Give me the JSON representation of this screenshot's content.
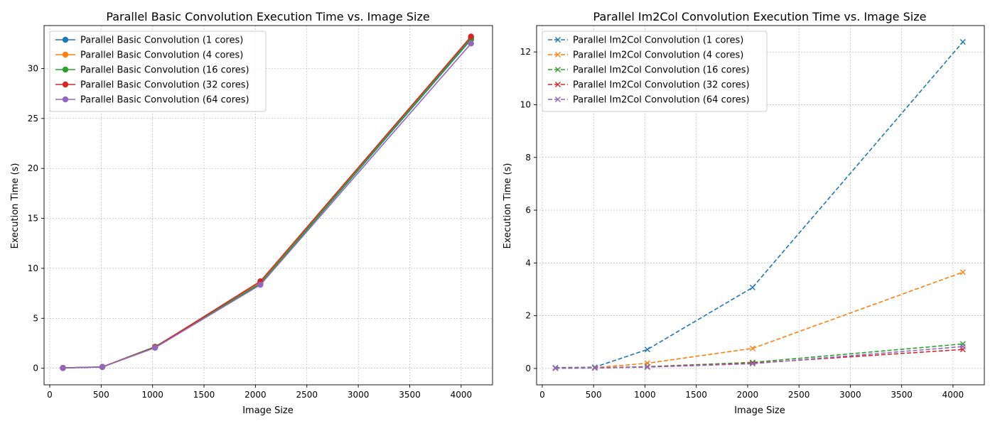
{
  "chart_data": [
    {
      "type": "line",
      "title": "Parallel Basic Convolution Execution Time vs. Image Size",
      "xlabel": "Image Size",
      "ylabel": "Execution Time (s)",
      "xlim": [
        -55,
        4305
      ],
      "ylim": [
        -1.66,
        34.3
      ],
      "xticks": [
        0,
        500,
        1000,
        1500,
        2000,
        2500,
        3000,
        3500,
        4000
      ],
      "yticks": [
        0,
        5,
        10,
        15,
        20,
        25,
        30
      ],
      "grid": true,
      "legend_position": "top-left",
      "marker": "circle",
      "linestyle": "solid",
      "x": [
        128,
        512,
        1024,
        2048,
        4096
      ],
      "series": [
        {
          "name": "Parallel Basic Convolution (1 cores)",
          "color": "#1f77b4",
          "values": [
            0.03,
            0.13,
            2.15,
            8.45,
            32.9
          ]
        },
        {
          "name": "Parallel Basic Convolution (4 cores)",
          "color": "#ff7f0e",
          "values": [
            0.03,
            0.13,
            2.15,
            8.55,
            33.1
          ]
        },
        {
          "name": "Parallel Basic Convolution (16 cores)",
          "color": "#2ca02c",
          "values": [
            0.03,
            0.13,
            2.15,
            8.5,
            33.0
          ]
        },
        {
          "name": "Parallel Basic Convolution (32 cores)",
          "color": "#d62728",
          "values": [
            0.03,
            0.13,
            2.1,
            8.7,
            33.2
          ]
        },
        {
          "name": "Parallel Basic Convolution (64 cores)",
          "color": "#9467bd",
          "values": [
            0.02,
            0.12,
            2.05,
            8.35,
            32.5
          ]
        }
      ]
    },
    {
      "type": "line",
      "title": "Parallel Im2Col Convolution Execution Time vs. Image Size",
      "xlabel": "Image Size",
      "ylabel": "Execution Time (s)",
      "xlim": [
        -55,
        4305
      ],
      "ylim": [
        -0.62,
        13.0
      ],
      "xticks": [
        0,
        500,
        1000,
        1500,
        2000,
        2500,
        3000,
        3500,
        4000
      ],
      "yticks": [
        0,
        2,
        4,
        6,
        8,
        10,
        12
      ],
      "grid": true,
      "legend_position": "top-left",
      "marker": "x",
      "linestyle": "dashed",
      "x": [
        128,
        512,
        1024,
        2048,
        4096
      ],
      "series": [
        {
          "name": "Parallel Im2Col Convolution (1 cores)",
          "color": "#1f77b4",
          "values": [
            0.03,
            0.05,
            0.72,
            3.07,
            12.38
          ]
        },
        {
          "name": "Parallel Im2Col Convolution (4 cores)",
          "color": "#ff7f0e",
          "values": [
            0.01,
            0.03,
            0.2,
            0.76,
            3.65
          ]
        },
        {
          "name": "Parallel Im2Col Convolution (16 cores)",
          "color": "#2ca02c",
          "values": [
            0.01,
            0.02,
            0.07,
            0.23,
            0.93
          ]
        },
        {
          "name": "Parallel Im2Col Convolution (32 cores)",
          "color": "#d62728",
          "values": [
            0.01,
            0.02,
            0.06,
            0.2,
            0.72
          ]
        },
        {
          "name": "Parallel Im2Col Convolution (64 cores)",
          "color": "#9467bd",
          "values": [
            0.01,
            0.02,
            0.05,
            0.18,
            0.83
          ]
        }
      ]
    }
  ]
}
